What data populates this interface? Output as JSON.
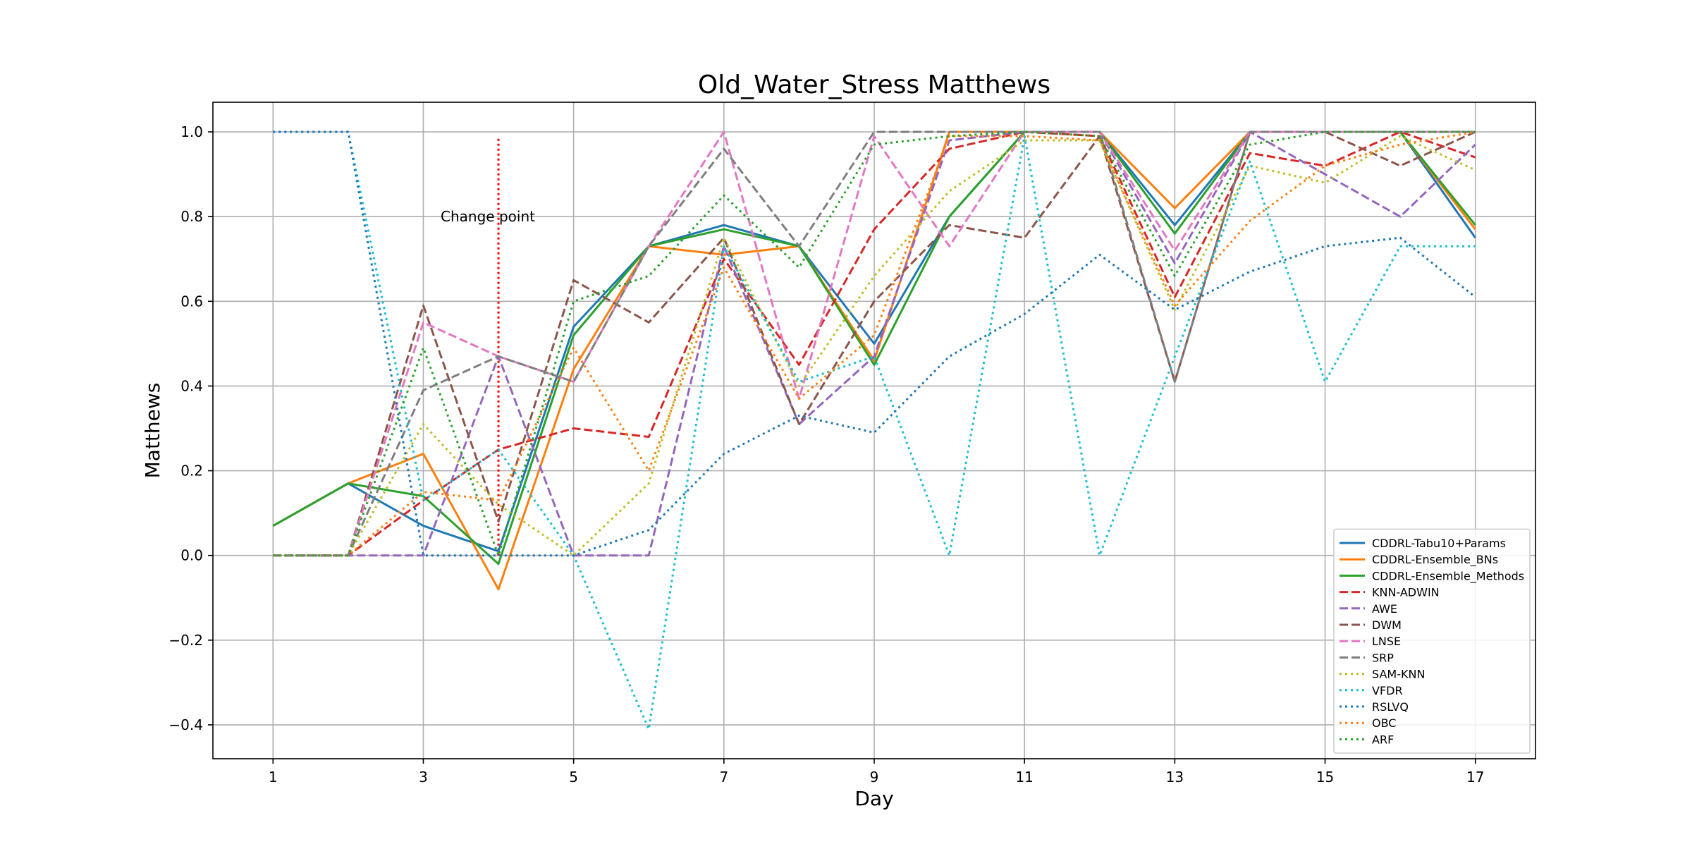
{
  "chart_data": {
    "type": "line",
    "title": "Old_Water_Stress Matthews",
    "xlabel": "Day",
    "ylabel": "Matthews",
    "x": [
      1,
      2,
      3,
      4,
      5,
      6,
      7,
      8,
      9,
      10,
      11,
      12,
      13,
      14,
      15,
      16,
      17
    ],
    "xticks": [
      1,
      3,
      5,
      7,
      9,
      11,
      13,
      15,
      17
    ],
    "xtick_labels": [
      "1",
      "3",
      "5",
      "7",
      "9",
      "11",
      "13",
      "15",
      "17"
    ],
    "yticks": [
      -0.4,
      -0.2,
      0.0,
      0.2,
      0.4,
      0.6,
      0.8,
      1.0
    ],
    "ytick_labels": [
      "−0.4",
      "−0.2",
      "0.0",
      "0.2",
      "0.4",
      "0.6",
      "0.8",
      "1.0"
    ],
    "xlim": [
      0.2,
      17.8
    ],
    "ylim": [
      -0.48,
      1.07
    ],
    "grid": true,
    "legend_position": "lower-right",
    "annotation": {
      "text": "Change point",
      "x": 4,
      "y_from": 0.0,
      "y_to": 0.99,
      "color": "#ff0000"
    },
    "series": [
      {
        "name": "CDDRL-Tabu10+Params",
        "color": "#1f77b4",
        "style": "solid",
        "values": [
          0.07,
          0.17,
          0.07,
          0.01,
          0.54,
          0.73,
          0.78,
          0.73,
          0.5,
          0.8,
          1.0,
          1.0,
          0.78,
          1.0,
          1.0,
          1.0,
          0.75
        ]
      },
      {
        "name": "CDDRL-Ensemble_BNs",
        "color": "#ff7f0e",
        "style": "solid",
        "values": [
          0.07,
          0.17,
          0.24,
          -0.08,
          0.44,
          0.73,
          0.71,
          0.73,
          0.46,
          1.0,
          1.0,
          1.0,
          0.82,
          1.0,
          1.0,
          1.0,
          0.77
        ]
      },
      {
        "name": "CDDRL-Ensemble_Methods",
        "color": "#2ca02c",
        "style": "solid",
        "values": [
          0.07,
          0.17,
          0.14,
          -0.02,
          0.52,
          0.73,
          0.77,
          0.73,
          0.45,
          0.8,
          1.0,
          1.0,
          0.76,
          1.0,
          1.0,
          1.0,
          0.78
        ]
      },
      {
        "name": "KNN-ADWIN",
        "color": "#d62728",
        "style": "dashed",
        "values": [
          0.0,
          0.0,
          0.13,
          0.25,
          0.3,
          0.28,
          0.7,
          0.45,
          0.77,
          0.96,
          1.0,
          0.99,
          0.61,
          0.95,
          0.92,
          1.0,
          0.94
        ]
      },
      {
        "name": "AWE",
        "color": "#9467bd",
        "style": "dashed",
        "values": [
          0.0,
          0.0,
          0.0,
          0.47,
          0.0,
          0.0,
          0.73,
          0.31,
          0.47,
          0.98,
          1.0,
          1.0,
          0.69,
          1.0,
          0.9,
          0.8,
          0.97
        ]
      },
      {
        "name": "DWM",
        "color": "#8c564b",
        "style": "dashed",
        "values": [
          0.0,
          0.0,
          0.59,
          0.08,
          0.65,
          0.55,
          0.75,
          0.31,
          0.6,
          0.78,
          0.75,
          0.99,
          0.41,
          1.0,
          1.0,
          0.92,
          1.0
        ]
      },
      {
        "name": "LNSE",
        "color": "#e377c2",
        "style": "dashed",
        "values": [
          0.0,
          0.0,
          0.55,
          0.47,
          0.41,
          0.73,
          1.0,
          0.37,
          0.99,
          0.73,
          1.0,
          1.0,
          0.72,
          1.0,
          1.0,
          1.0,
          1.0
        ]
      },
      {
        "name": "SRP",
        "color": "#7f7f7f",
        "style": "dashed",
        "values": [
          0.0,
          0.0,
          0.39,
          0.47,
          0.41,
          0.73,
          0.96,
          0.73,
          1.0,
          1.0,
          1.0,
          1.0,
          0.41,
          1.0,
          1.0,
          1.0,
          1.0
        ]
      },
      {
        "name": "SAM-KNN",
        "color": "#bcbd22",
        "style": "dotted",
        "values": [
          0.0,
          0.0,
          0.31,
          0.12,
          0.0,
          0.17,
          0.75,
          0.4,
          0.66,
          0.86,
          0.98,
          0.98,
          0.58,
          0.92,
          0.88,
          0.99,
          0.91
        ]
      },
      {
        "name": "VFDR",
        "color": "#17becf",
        "style": "dotted",
        "values": [
          1.0,
          1.0,
          0.13,
          0.25,
          0.0,
          -0.41,
          0.73,
          0.41,
          0.47,
          0.0,
          0.99,
          0.0,
          0.47,
          0.93,
          0.41,
          0.73,
          0.73
        ]
      },
      {
        "name": "RSLVQ",
        "color": "#1f77b4",
        "style": "dotted",
        "values": [
          1.0,
          1.0,
          0.0,
          0.0,
          0.0,
          0.06,
          0.24,
          0.33,
          0.29,
          0.47,
          0.57,
          0.71,
          0.58,
          0.67,
          0.73,
          0.75,
          0.61
        ]
      },
      {
        "name": "OBC",
        "color": "#ff7f0e",
        "style": "dotted",
        "values": [
          0.0,
          0.0,
          0.15,
          0.13,
          0.49,
          0.2,
          0.68,
          0.37,
          0.52,
          0.99,
          0.99,
          0.98,
          0.59,
          0.79,
          0.92,
          0.97,
          1.0
        ]
      },
      {
        "name": "ARF",
        "color": "#2ca02c",
        "style": "dotted",
        "values": [
          0.0,
          0.0,
          0.49,
          0.0,
          0.6,
          0.66,
          0.85,
          0.68,
          0.97,
          0.99,
          1.0,
          0.99,
          0.66,
          0.97,
          1.0,
          1.0,
          1.0
        ]
      }
    ]
  }
}
